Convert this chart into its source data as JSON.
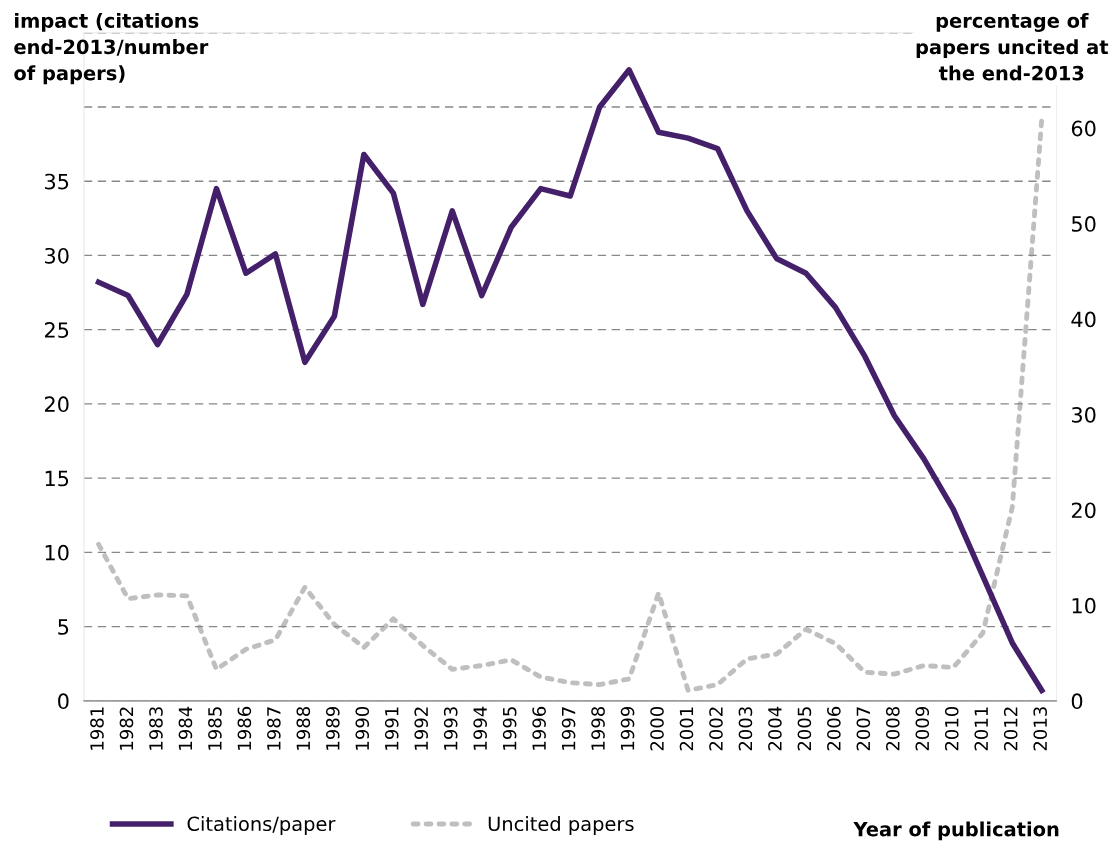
{
  "chart_data": {
    "type": "line",
    "categories": [
      "1981",
      "1982",
      "1983",
      "1984",
      "1985",
      "1986",
      "1987",
      "1988",
      "1989",
      "1990",
      "1991",
      "1992",
      "1993",
      "1994",
      "1995",
      "1996",
      "1997",
      "1998",
      "1999",
      "2000",
      "2001",
      "2002",
      "2003",
      "2004",
      "2005",
      "2006",
      "2007",
      "2008",
      "2009",
      "2010",
      "2011",
      "2012",
      "2013"
    ],
    "series": [
      {
        "name": "Citations/paper",
        "color": "#44206a",
        "line_style": "solid",
        "values": [
          28.2,
          27.3,
          24.0,
          27.4,
          34.5,
          28.8,
          30.1,
          22.8,
          25.9,
          36.8,
          34.2,
          26.7,
          33.0,
          27.3,
          31.9,
          34.5,
          34.0,
          40.0,
          42.5,
          38.3,
          37.9,
          37.2,
          33.0,
          29.8,
          28.8,
          26.5,
          23.2,
          19.2,
          16.3,
          12.9,
          8.4,
          3.9,
          0.7
        ]
      },
      {
        "name": "Uncited papers",
        "color": "#bfbfbf",
        "line_style": "dotted",
        "axis": "y2",
        "values": [
          16.4,
          10.7,
          11.1,
          11.0,
          3.3,
          5.4,
          6.4,
          11.9,
          8.0,
          5.6,
          8.6,
          5.8,
          3.3,
          3.7,
          4.3,
          2.5,
          1.9,
          1.7,
          2.3,
          11.3,
          1.1,
          1.7,
          4.4,
          4.9,
          7.5,
          6.0,
          3.0,
          2.8,
          3.7,
          3.5,
          7.1,
          20.3,
          61
        ]
      }
    ],
    "ylabel": "impact (citations\nend-2013/number\nof papers)",
    "y2label": "percentage of\npapers uncited at\nthe end-2013",
    "xlabel": "Year of publication",
    "ylim": [
      0,
      45
    ],
    "yticks": [
      0,
      5,
      10,
      15,
      20,
      25,
      30,
      35,
      {
        "value": 40,
        "label": null
      },
      {
        "value": 45,
        "label": null
      }
    ],
    "y2lim": [
      0,
      70
    ],
    "y2ticks": [
      0,
      10,
      20,
      30,
      40,
      50,
      60
    ],
    "grid": "y",
    "legend": "bottom left",
    "marker": "none"
  }
}
